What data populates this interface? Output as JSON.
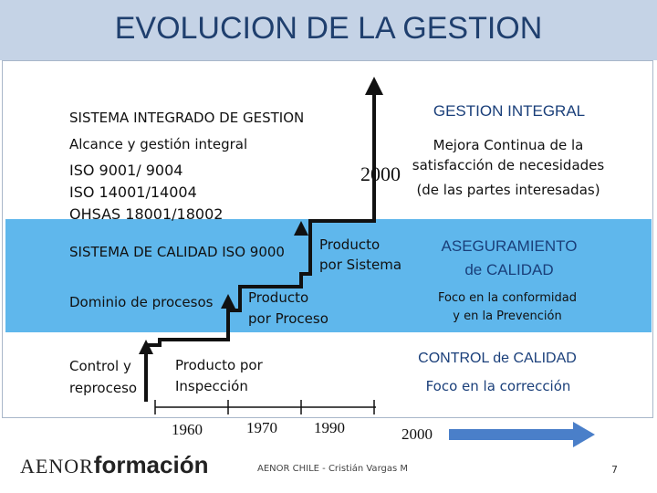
{
  "slide": {
    "title": "EVOLUCION DE LA GESTION",
    "footer_credit": "AENOR CHILE - Cristián Vargas M",
    "page_number": "7",
    "logo": {
      "part1": "AENOR",
      "part2": "formación"
    }
  },
  "stages": {
    "integrated": {
      "heading": "SISTEMA INTEGRADO DE GESTION",
      "subheading": "Alcance y gestión integral",
      "standards": [
        "ISO 9001/ 9004",
        "ISO 14001/14004",
        "OHSAS 18001/18002"
      ],
      "right_title": "GESTION INTEGRAL",
      "right_desc": [
        "Mejora Continua de la",
        "satisfacción de necesidades",
        "(de las partes interesadas)"
      ],
      "year": "2000"
    },
    "quality_system": {
      "heading": "SISTEMA DE CALIDAD ISO 9000",
      "step_label": [
        "Producto",
        "por Sistema"
      ],
      "right_title": [
        "ASEGURAMIENTO",
        "de CALIDAD"
      ],
      "right_desc": [
        "Foco en la conformidad",
        "y en la Prevención"
      ]
    },
    "process": {
      "heading": "Dominio de procesos",
      "step_label": [
        "Producto",
        "por Proceso"
      ]
    },
    "inspection": {
      "heading": [
        "Control y",
        "reproceso"
      ],
      "step_label": [
        "Producto por",
        "Inspección"
      ],
      "right_title": "CONTROL de CALIDAD",
      "right_desc": "Foco en la corrección"
    }
  },
  "timeline": {
    "years": [
      "1960",
      "1970",
      "1990",
      "2000"
    ],
    "arrow_color": "#4a7fc9"
  },
  "colors": {
    "title_bar": "#c5d3e6",
    "band": "#5fb7ec",
    "title_text": "#1f3f6e"
  }
}
